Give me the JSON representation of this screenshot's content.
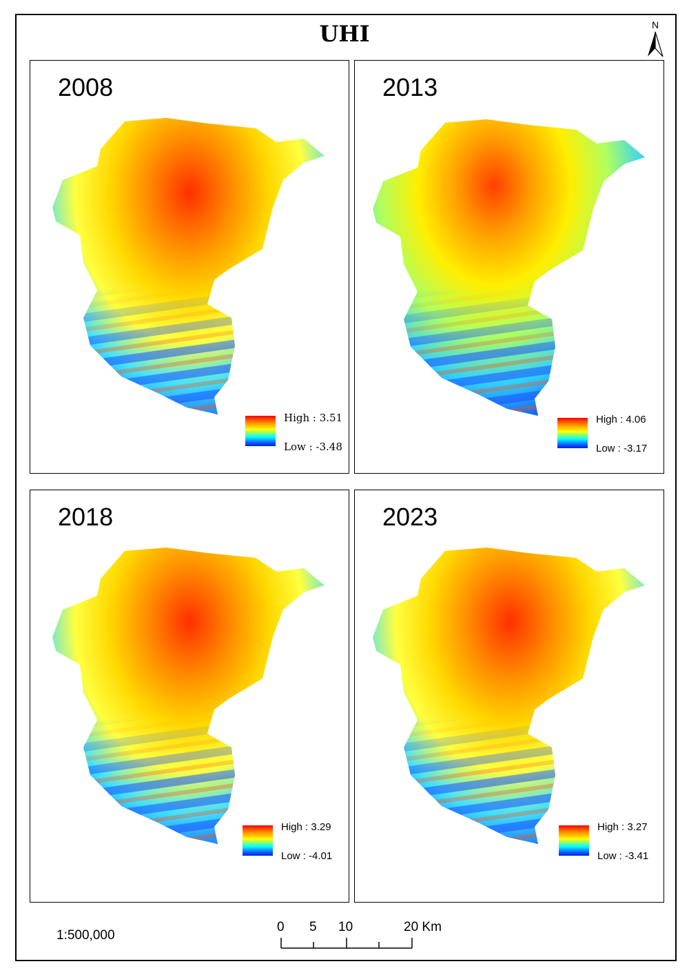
{
  "title": "UHI",
  "north_arrow": {
    "label": "N",
    "icon": "north-arrow-icon"
  },
  "panels": [
    {
      "year": "2008",
      "high": "High : 3.51",
      "low": "Low : -3.48"
    },
    {
      "year": "2013",
      "high": "High : 4.06",
      "low": "Low : -3.17"
    },
    {
      "year": "2018",
      "high": "High : 3.29",
      "low": "Low : -4.01"
    },
    {
      "year": "2023",
      "high": "High : 3.27",
      "low": "Low : -3.41"
    }
  ],
  "scale": {
    "ratio": "1:500,000",
    "labels": [
      "0",
      "5",
      "10",
      "20 Km"
    ]
  },
  "colors": {
    "high": "#ff0000",
    "mid": "#ffff00",
    "low": "#0020e0"
  }
}
